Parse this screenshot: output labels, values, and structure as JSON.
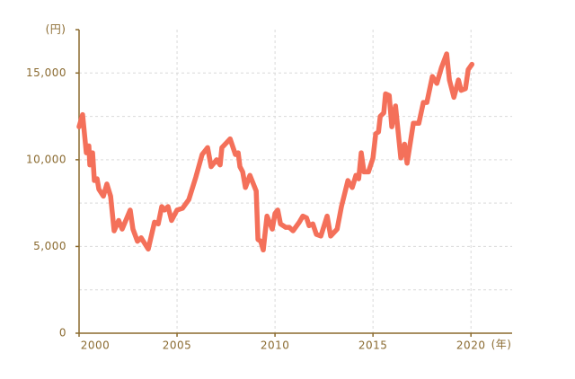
{
  "chart_data": {
    "type": "line",
    "y_unit": "(円)",
    "x_unit": "(年)",
    "xlim": [
      2000,
      2022.1
    ],
    "xticks": [
      2000,
      2005,
      2010,
      2015,
      2020
    ],
    "ylim": [
      0,
      17500
    ],
    "yticks": [
      0,
      {
        "value": 5000,
        "label": "5,000"
      },
      {
        "value": 10000,
        "label": "10,000"
      },
      {
        "value": 15000,
        "label": "15,000"
      }
    ],
    "yticks_minor": [
      2500,
      7500,
      12500
    ],
    "grid": true,
    "series": [
      {
        "color": "#f4705a",
        "x": [
          2000.0,
          2000.18,
          2000.37,
          2000.5,
          2000.55,
          2000.69,
          2000.78,
          2000.92,
          2001.01,
          2001.24,
          2001.42,
          2001.61,
          2001.79,
          2002.02,
          2002.2,
          2002.61,
          2002.75,
          2002.98,
          2003.17,
          2003.53,
          2003.85,
          2004.04,
          2004.22,
          2004.36,
          2004.54,
          2004.72,
          2005.0,
          2005.28,
          2005.6,
          2005.96,
          2006.28,
          2006.56,
          2006.74,
          2007.02,
          2007.2,
          2007.29,
          2007.71,
          2007.98,
          2008.12,
          2008.21,
          2008.35,
          2008.49,
          2008.72,
          2009.04,
          2009.13,
          2009.27,
          2009.4,
          2009.59,
          2009.86,
          2010.0,
          2010.14,
          2010.28,
          2010.55,
          2010.73,
          2010.92,
          2011.24,
          2011.42,
          2011.61,
          2011.74,
          2011.93,
          2012.11,
          2012.34,
          2012.66,
          2012.84,
          2013.17,
          2013.39,
          2013.72,
          2013.94,
          2014.13,
          2014.27,
          2014.4,
          2014.54,
          2014.77,
          2015.0,
          2015.14,
          2015.28,
          2015.37,
          2015.55,
          2015.64,
          2015.83,
          2015.96,
          2016.15,
          2016.42,
          2016.61,
          2016.74,
          2017.06,
          2017.34,
          2017.57,
          2017.75,
          2018.03,
          2018.26,
          2018.49,
          2018.76,
          2018.9,
          2019.13,
          2019.36,
          2019.5,
          2019.72,
          2019.86,
          2020.05
        ],
        "values": [
          11900,
          12600,
          10400,
          10800,
          9700,
          10400,
          8800,
          8900,
          8300,
          7900,
          8600,
          7900,
          5900,
          6500,
          6000,
          7100,
          6000,
          5300,
          5500,
          4850,
          6400,
          6300,
          7300,
          7100,
          7300,
          6500,
          7100,
          7200,
          7700,
          9000,
          10300,
          10700,
          9600,
          10000,
          9700,
          10700,
          11200,
          10300,
          10400,
          9600,
          9300,
          8400,
          9100,
          8200,
          5400,
          5300,
          4800,
          6750,
          6000,
          6900,
          7100,
          6300,
          6100,
          6100,
          5900,
          6400,
          6750,
          6650,
          6200,
          6300,
          5700,
          5600,
          6750,
          5600,
          6000,
          7300,
          8800,
          8400,
          9100,
          8900,
          10400,
          9300,
          9300,
          10100,
          11500,
          11600,
          12500,
          12700,
          13800,
          13700,
          11900,
          13100,
          10100,
          10900,
          9800,
          12100,
          12100,
          13300,
          13300,
          14800,
          14400,
          15300,
          16100,
          14600,
          13600,
          14600,
          14000,
          14100,
          15200,
          15500
        ]
      }
    ]
  }
}
